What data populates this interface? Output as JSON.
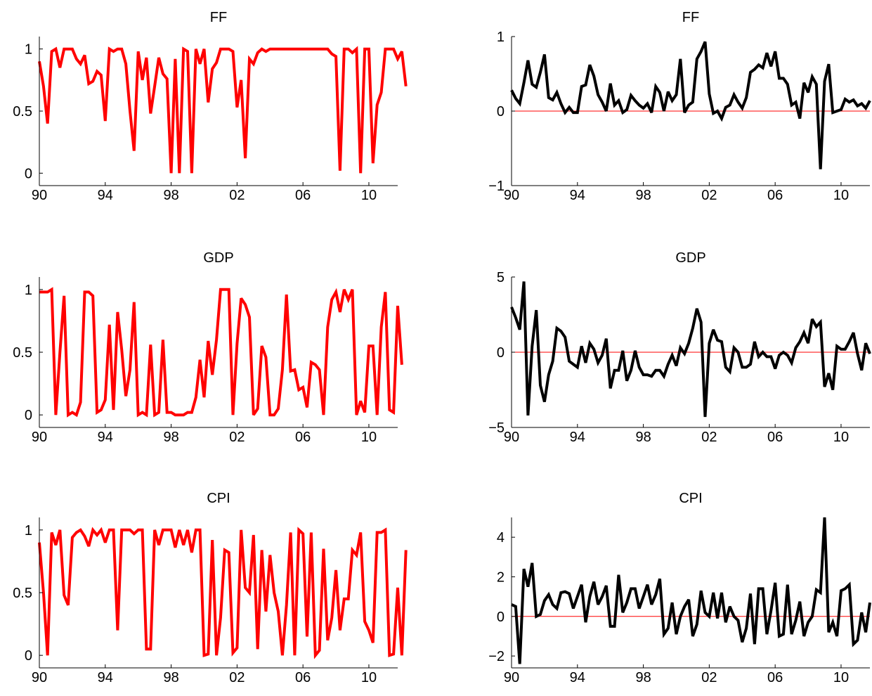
{
  "colors": {
    "left_series": "#ff0000",
    "right_series": "#000000",
    "zero_line": "#ff0000",
    "axis": "#000000"
  },
  "chart_data": [
    {
      "type": "line",
      "title": "FF",
      "xlabel": "",
      "ylabel": "",
      "xlim": [
        1990,
        2011.75
      ],
      "ylim": [
        -0.1,
        1.1
      ],
      "xticks": [
        1990,
        1994,
        1998,
        2002,
        2006,
        2010
      ],
      "xtick_labels": [
        "90",
        "94",
        "98",
        "02",
        "06",
        "10"
      ],
      "yticks": [
        0,
        0.5,
        1
      ],
      "ytick_labels": [
        "0",
        "0.5",
        "1"
      ],
      "grid": false,
      "zero_line": false,
      "series": [
        {
          "color": "#ff0000",
          "x_start": 1990,
          "x_step": 0.25,
          "values": [
            0.9,
            0.7,
            0.4,
            0.98,
            1.0,
            0.85,
            1.0,
            1.0,
            1.0,
            0.92,
            0.88,
            0.95,
            0.72,
            0.74,
            0.82,
            0.79,
            0.42,
            1.0,
            0.98,
            1.0,
            1.0,
            0.88,
            0.5,
            0.18,
            0.98,
            0.75,
            0.93,
            0.48,
            0.7,
            0.93,
            0.8,
            0.76,
            0.0,
            0.92,
            0.0,
            1.0,
            0.98,
            0.0,
            1.0,
            0.88,
            1.0,
            0.57,
            0.84,
            0.89,
            1.0,
            1.0,
            1.0,
            0.98,
            0.53,
            0.75,
            0.12,
            0.92,
            0.88,
            0.97,
            1.0,
            0.98,
            1.0,
            1.0,
            1.0,
            1.0,
            1.0,
            1.0,
            1.0,
            1.0,
            1.0,
            1.0,
            1.0,
            1.0,
            1.0,
            1.0,
            1.0,
            0.96,
            0.94,
            0.02,
            1.0,
            1.0,
            0.97,
            1.0,
            0.0,
            1.0,
            1.0,
            0.08,
            0.55,
            0.65,
            1.0,
            1.0,
            1.0,
            0.92,
            0.98,
            0.7
          ]
        }
      ]
    },
    {
      "type": "line",
      "title": "FF",
      "xlabel": "",
      "ylabel": "",
      "xlim": [
        1990,
        2011.75
      ],
      "ylim": [
        -1,
        1
      ],
      "xticks": [
        1990,
        1994,
        1998,
        2002,
        2006,
        2010
      ],
      "xtick_labels": [
        "90",
        "94",
        "98",
        "02",
        "06",
        "10"
      ],
      "yticks": [
        -1,
        0,
        1
      ],
      "ytick_labels": [
        "−1",
        "0",
        "1"
      ],
      "grid": false,
      "zero_line": true,
      "series": [
        {
          "color": "#000000",
          "x_start": 1990,
          "x_step": 0.25,
          "values": [
            0.28,
            0.17,
            0.1,
            0.38,
            0.68,
            0.36,
            0.32,
            0.52,
            0.76,
            0.18,
            0.15,
            0.25,
            0.1,
            -0.02,
            0.05,
            -0.02,
            -0.02,
            0.33,
            0.35,
            0.62,
            0.47,
            0.22,
            0.12,
            0.0,
            0.37,
            0.08,
            0.14,
            -0.02,
            0.02,
            0.21,
            0.14,
            0.08,
            0.04,
            0.1,
            -0.02,
            0.33,
            0.25,
            0.0,
            0.26,
            0.14,
            0.22,
            0.7,
            -0.02,
            0.08,
            0.12,
            0.7,
            0.8,
            0.93,
            0.23,
            -0.03,
            0.0,
            -0.1,
            0.05,
            0.08,
            0.22,
            0.12,
            0.04,
            0.18,
            0.52,
            0.56,
            0.62,
            0.58,
            0.78,
            0.6,
            0.8,
            0.44,
            0.44,
            0.36,
            0.08,
            0.12,
            -0.1,
            0.38,
            0.25,
            0.46,
            0.36,
            -0.78,
            0.4,
            0.63,
            -0.02,
            0.0,
            0.02,
            0.16,
            0.12,
            0.15,
            0.07,
            0.1,
            0.04,
            0.14
          ]
        }
      ]
    },
    {
      "type": "line",
      "title": "GDP",
      "xlabel": "",
      "ylabel": "",
      "xlim": [
        1990,
        2011.75
      ],
      "ylim": [
        -0.1,
        1.1
      ],
      "xticks": [
        1990,
        1994,
        1998,
        2002,
        2006,
        2010
      ],
      "xtick_labels": [
        "90",
        "94",
        "98",
        "02",
        "06",
        "10"
      ],
      "yticks": [
        0,
        0.5,
        1
      ],
      "ytick_labels": [
        "0",
        "0.5",
        "1"
      ],
      "grid": false,
      "zero_line": false,
      "series": [
        {
          "color": "#ff0000",
          "x_start": 1990,
          "x_step": 0.25,
          "values": [
            0.98,
            0.98,
            0.98,
            1.0,
            0.0,
            0.5,
            0.95,
            0.0,
            0.02,
            0.0,
            0.1,
            0.98,
            0.98,
            0.95,
            0.02,
            0.04,
            0.12,
            0.72,
            0.04,
            0.82,
            0.52,
            0.15,
            0.36,
            0.9,
            0.0,
            0.02,
            0.0,
            0.56,
            0.0,
            0.02,
            0.6,
            0.02,
            0.02,
            0.0,
            0.0,
            0.0,
            0.02,
            0.02,
            0.14,
            0.44,
            0.14,
            0.59,
            0.32,
            0.6,
            1.0,
            1.0,
            1.0,
            0.0,
            0.57,
            0.93,
            0.88,
            0.78,
            0.0,
            0.05,
            0.55,
            0.46,
            0.0,
            0.0,
            0.05,
            0.36,
            0.96,
            0.35,
            0.36,
            0.2,
            0.22,
            0.06,
            0.42,
            0.4,
            0.36,
            0.0,
            0.7,
            0.92,
            0.98,
            0.82,
            1.0,
            0.92,
            1.0,
            0.0,
            0.11,
            0.02,
            0.55,
            0.55,
            0.0,
            0.7,
            0.98,
            0.04,
            0.02,
            0.87,
            0.4
          ]
        }
      ]
    },
    {
      "type": "line",
      "title": "GDP",
      "xlabel": "",
      "ylabel": "",
      "xlim": [
        1990,
        2011.75
      ],
      "ylim": [
        -5,
        5
      ],
      "xticks": [
        1990,
        1994,
        1998,
        2002,
        2006,
        2010
      ],
      "xtick_labels": [
        "90",
        "94",
        "98",
        "02",
        "06",
        "10"
      ],
      "yticks": [
        -5,
        0,
        5
      ],
      "ytick_labels": [
        "−5",
        "0",
        "5"
      ],
      "grid": false,
      "zero_line": true,
      "series": [
        {
          "color": "#000000",
          "x_start": 1990,
          "x_step": 0.25,
          "values": [
            3.0,
            2.3,
            1.5,
            4.7,
            -4.2,
            0.4,
            2.8,
            -2.2,
            -3.3,
            -1.5,
            -0.6,
            1.6,
            1.4,
            1.0,
            -0.6,
            -0.8,
            -1.0,
            0.4,
            -0.7,
            0.6,
            0.2,
            -0.7,
            -0.2,
            0.9,
            -2.4,
            -1.2,
            -1.2,
            0.1,
            -1.9,
            -1.2,
            0.1,
            -1.0,
            -1.5,
            -1.5,
            -1.6,
            -1.2,
            -1.2,
            -1.6,
            -0.8,
            -0.2,
            -0.9,
            0.3,
            -0.1,
            0.6,
            1.6,
            2.9,
            2.0,
            -4.3,
            0.6,
            1.5,
            0.8,
            0.7,
            -1.0,
            -1.3,
            0.3,
            0.0,
            -1.0,
            -1.0,
            -0.8,
            0.7,
            -0.3,
            0.0,
            -0.3,
            -0.3,
            -1.1,
            -0.2,
            0.0,
            -0.2,
            -0.7,
            0.3,
            0.7,
            1.3,
            0.6,
            2.2,
            1.7,
            2.0,
            -2.3,
            -1.4,
            -2.5,
            0.4,
            0.2,
            0.2,
            0.7,
            1.3,
            -0.1,
            -1.2,
            0.6,
            -0.1
          ]
        }
      ]
    },
    {
      "type": "line",
      "title": "CPI",
      "xlabel": "",
      "ylabel": "",
      "xlim": [
        1990,
        2011.75
      ],
      "ylim": [
        -0.1,
        1.1
      ],
      "xticks": [
        1990,
        1994,
        1998,
        2002,
        2006,
        2010
      ],
      "xtick_labels": [
        "90",
        "94",
        "98",
        "02",
        "06",
        "10"
      ],
      "yticks": [
        0,
        0.5,
        1
      ],
      "ytick_labels": [
        "0",
        "0.5",
        "1"
      ],
      "grid": false,
      "zero_line": false,
      "series": [
        {
          "color": "#ff0000",
          "x_start": 1990,
          "x_step": 0.25,
          "values": [
            0.9,
            0.5,
            0.0,
            0.98,
            0.88,
            1.0,
            0.48,
            0.4,
            0.94,
            0.98,
            1.0,
            0.95,
            0.87,
            1.0,
            0.96,
            1.0,
            0.9,
            1.0,
            1.0,
            0.2,
            1.0,
            1.0,
            1.0,
            0.97,
            1.0,
            1.0,
            0.05,
            0.05,
            1.0,
            0.88,
            1.0,
            1.0,
            1.0,
            0.86,
            1.0,
            0.88,
            1.0,
            0.82,
            1.0,
            1.0,
            0.0,
            0.01,
            0.92,
            0.0,
            0.3,
            0.84,
            0.82,
            0.02,
            0.06,
            1.0,
            0.54,
            0.5,
            0.96,
            0.05,
            0.84,
            0.35,
            0.8,
            0.5,
            0.35,
            0.0,
            0.4,
            0.98,
            0.0,
            1.0,
            0.97,
            0.15,
            0.98,
            0.0,
            0.04,
            0.85,
            0.12,
            0.3,
            0.68,
            0.2,
            0.45,
            0.45,
            0.84,
            0.8,
            0.98,
            0.27,
            0.2,
            0.1,
            0.98,
            0.98,
            1.0,
            0.0,
            0.01,
            0.54,
            0.0,
            0.84
          ]
        }
      ]
    },
    {
      "type": "line",
      "title": "CPI",
      "xlabel": "",
      "ylabel": "",
      "xlim": [
        1990,
        2011.75
      ],
      "ylim": [
        -2.6,
        5.0
      ],
      "xticks": [
        1990,
        1994,
        1998,
        2002,
        2006,
        2010
      ],
      "xtick_labels": [
        "90",
        "94",
        "98",
        "02",
        "06",
        "10"
      ],
      "yticks": [
        -2,
        0,
        2,
        4
      ],
      "ytick_labels": [
        "−2",
        "0",
        "2",
        "4"
      ],
      "grid": false,
      "zero_line": true,
      "series": [
        {
          "color": "#000000",
          "x_start": 1990,
          "x_step": 0.25,
          "values": [
            0.6,
            0.5,
            -2.4,
            2.4,
            1.5,
            2.7,
            0.0,
            0.1,
            0.8,
            1.1,
            0.6,
            0.4,
            1.2,
            1.25,
            1.15,
            0.4,
            1.0,
            1.6,
            -0.3,
            1.0,
            1.75,
            0.6,
            1.0,
            1.55,
            -0.5,
            -0.5,
            2.1,
            0.2,
            0.7,
            1.4,
            1.4,
            0.4,
            1.0,
            1.6,
            0.6,
            1.1,
            1.9,
            -0.9,
            -0.6,
            0.7,
            -0.9,
            0.0,
            0.5,
            0.85,
            -1.0,
            -0.4,
            1.3,
            0.2,
            0.0,
            1.2,
            -0.1,
            1.2,
            -0.3,
            0.5,
            0.0,
            -0.2,
            -1.3,
            -0.6,
            1.15,
            -1.4,
            1.4,
            1.4,
            -0.9,
            0.3,
            1.7,
            -1.0,
            -0.9,
            1.6,
            -0.9,
            -0.2,
            0.75,
            -1.0,
            -0.3,
            0.0,
            1.35,
            1.2,
            5.0,
            -0.8,
            -0.3,
            -1.0,
            1.3,
            1.4,
            1.6,
            -1.4,
            -1.2,
            0.2,
            -0.8,
            0.7
          ]
        }
      ]
    }
  ]
}
